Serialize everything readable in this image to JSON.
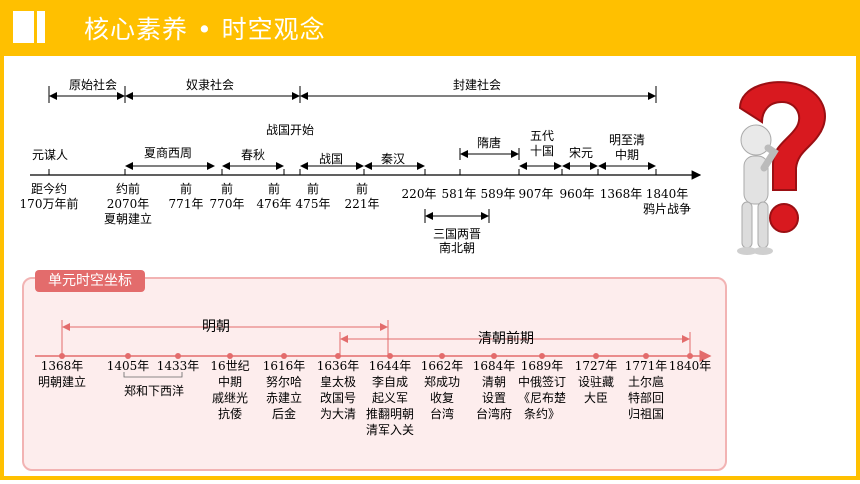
{
  "header": {
    "title": "核心素养 • 时空观念"
  },
  "top": {
    "periods": [
      "原始社会",
      "奴隶社会",
      "封建社会"
    ],
    "dynasties": {
      "yuanmou": "元谋人",
      "xiashang": "夏商西周",
      "chunqiu": "春秋",
      "zhanguo_start": "战国开始",
      "zhanguo": "战国",
      "qinhan": "秦汉",
      "suitang": "隋唐",
      "wudai1": "五代",
      "wudai2": "十国",
      "songyuan": "宋元",
      "mingqing1": "明至清",
      "mingqing2": "中期",
      "sanguo1": "三国两晋",
      "sanguo2": "南北朝"
    },
    "labels": {
      "t1a": "距今约",
      "t1b": "170万年前",
      "t2a": "约前",
      "t2b": "2070年",
      "t2c": "夏朝建立",
      "t3a": "前",
      "t3b": "771年",
      "t4a": "前",
      "t4b": "770年",
      "t5a": "前",
      "t5b": "476年",
      "t6a": "前",
      "t6b": "475年",
      "t7a": "前",
      "t7b": "221年",
      "t8": "220年",
      "t9": "581年",
      "t10": "589年",
      "t11": "907年",
      "t12": "960年",
      "t13": "1368年",
      "t14a": "1840年",
      "t14b": "鸦片战争"
    }
  },
  "unit": {
    "tag": "单元时空坐标",
    "ming": "明朝",
    "qing": "清朝前期",
    "events": [
      {
        "year": "1368年",
        "l1": "明朝建立",
        "l2": "",
        "l3": "",
        "l4": ""
      },
      {
        "year": "1405年",
        "l1": "",
        "l2": "",
        "l3": "",
        "l4": ""
      },
      {
        "year": "1433年",
        "l1": "",
        "l2": "",
        "l3": "",
        "l4": ""
      },
      {
        "year": "16世纪",
        "l1": "中期",
        "l2": "戚继光",
        "l3": "抗倭",
        "l4": ""
      },
      {
        "year": "1616年",
        "l1": "努尔哈",
        "l2": "赤建立",
        "l3": "后金",
        "l4": ""
      },
      {
        "year": "1636年",
        "l1": "皇太极",
        "l2": "改国号",
        "l3": "为大清",
        "l4": ""
      },
      {
        "year": "1644年",
        "l1": "李自成",
        "l2": "起义军",
        "l3": "推翻明朝",
        "l4": "清军入关"
      },
      {
        "year": "1662年",
        "l1": "郑成功",
        "l2": "收复",
        "l3": "台湾",
        "l4": ""
      },
      {
        "year": "1684年",
        "l1": "清朝",
        "l2": "设置",
        "l3": "台湾府",
        "l4": ""
      },
      {
        "year": "1689年",
        "l1": "中俄签订",
        "l2": "《尼布楚",
        "l3": "条约》",
        "l4": ""
      },
      {
        "year": "1727年",
        "l1": "设驻藏",
        "l2": "大臣",
        "l3": "",
        "l4": ""
      },
      {
        "year": "1771年",
        "l1": "土尔扈",
        "l2": "特部回",
        "l3": "归祖国",
        "l4": ""
      },
      {
        "year": "1840年",
        "l1": "",
        "l2": "",
        "l3": "",
        "l4": ""
      }
    ],
    "zhenghe": "郑和下西洋"
  }
}
